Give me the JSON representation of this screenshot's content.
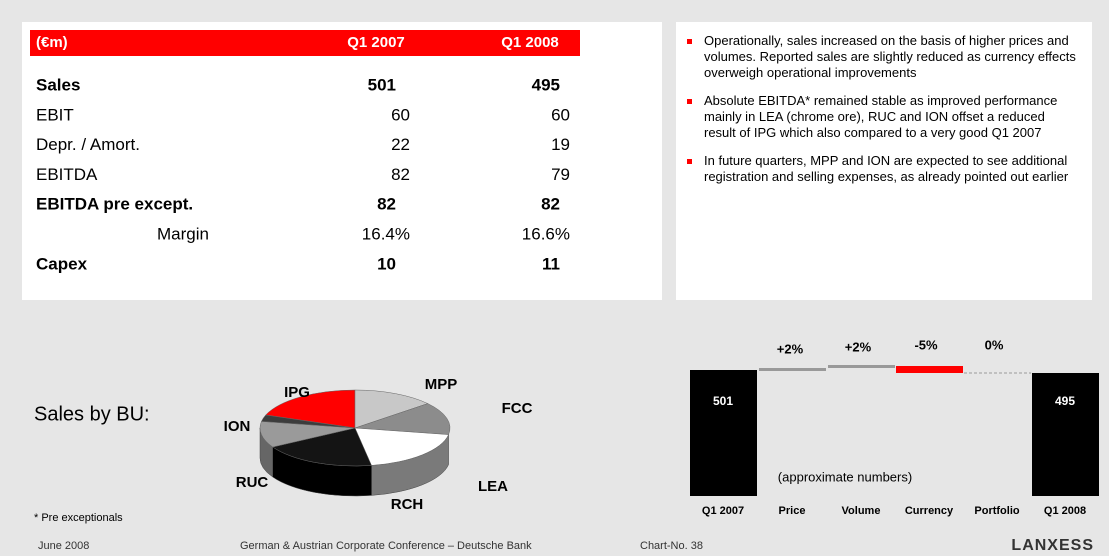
{
  "table": {
    "header": [
      "(€m)",
      "Q1 2007",
      "Q1 2008"
    ],
    "rows": [
      [
        "Sales",
        "501",
        "495"
      ],
      [
        "EBIT",
        "60",
        "60"
      ],
      [
        "Depr. / Amort.",
        "22",
        "19"
      ],
      [
        "EBITDA",
        "82",
        "79"
      ],
      [
        "EBITDA pre except.",
        "82",
        "82"
      ],
      [
        "Margin",
        "16.4%",
        "16.6%"
      ],
      [
        "Capex",
        "10",
        "11"
      ]
    ]
  },
  "bullets": [
    "Operationally, sales increased on the basis of higher prices and volumes. Reported sales are slightly reduced as currency effects overweigh operational improvements",
    "Absolute EBITDA* remained stable as improved performance mainly in LEA (chrome ore), RUC and ION offset a reduced result of IPG which also compared to a very good Q1 2007",
    "In future quarters, MPP and ION are expected to see additional registration and selling expenses, as already pointed out earlier"
  ],
  "pie": {
    "label": "Sales by BU:",
    "segments": [
      "IPG",
      "MPP",
      "FCC",
      "LEA",
      "RCH",
      "RUC",
      "ION"
    ]
  },
  "waterfall": {
    "start": "501",
    "changes": [
      "+2%",
      "+2%",
      "-5%",
      "0%"
    ],
    "end": "495",
    "note": "(approximate numbers)",
    "categories": [
      "Q1 2007",
      "Price",
      "Volume",
      "Currency",
      "Portfolio",
      "Q1 2008"
    ]
  },
  "footnote": "* Pre exceptionals",
  "footer": {
    "date": "June 2008",
    "event": "German & Austrian Corporate Conference – Deutsche Bank",
    "chart_no": "Chart-No. 38",
    "logo": "LANXESS"
  }
}
